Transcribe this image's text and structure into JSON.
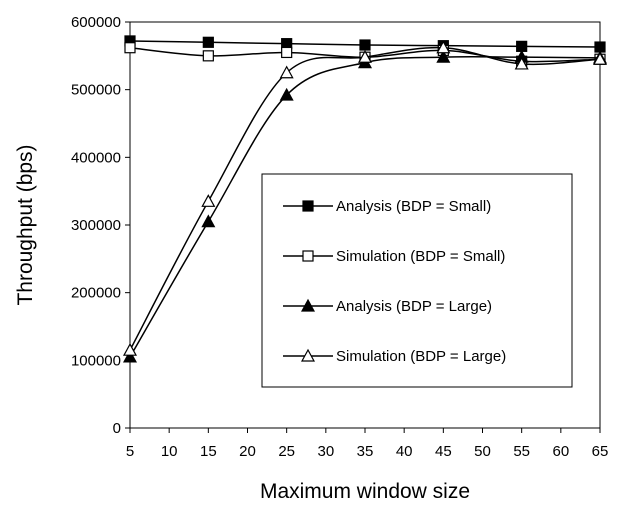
{
  "chart_data": {
    "type": "line",
    "title": "",
    "xlabel": "Maximum window size",
    "ylabel": "Throughput (bps)",
    "x": [
      5,
      15,
      25,
      35,
      45,
      55,
      65
    ],
    "x_ticks": [
      "5",
      "10",
      "15",
      "20",
      "25",
      "30",
      "35",
      "40",
      "45",
      "50",
      "55",
      "60",
      "65"
    ],
    "y_ticks": [
      "0",
      "100000",
      "200000",
      "300000",
      "400000",
      "500000",
      "600000"
    ],
    "xlim": [
      5,
      65
    ],
    "ylim": [
      0,
      600000
    ],
    "grid": false,
    "legend_position": "center-right",
    "series": [
      {
        "name": "Analysis (BDP = Small)",
        "marker": "square-filled",
        "values": [
          572000,
          570000,
          568000,
          566000,
          565000,
          564000,
          563000
        ]
      },
      {
        "name": "Simulation (BDP = Small)",
        "marker": "square-open",
        "values": [
          562000,
          550000,
          555000,
          548000,
          558000,
          542000,
          545000
        ]
      },
      {
        "name": "Analysis (BDP = Large)",
        "marker": "triangle-filled",
        "values": [
          105000,
          305000,
          492000,
          540000,
          548000,
          548000,
          547000
        ]
      },
      {
        "name": "Simulation (BDP = Large)",
        "marker": "triangle-open",
        "values": [
          115000,
          335000,
          525000,
          548000,
          562000,
          538000,
          545000
        ]
      }
    ]
  }
}
